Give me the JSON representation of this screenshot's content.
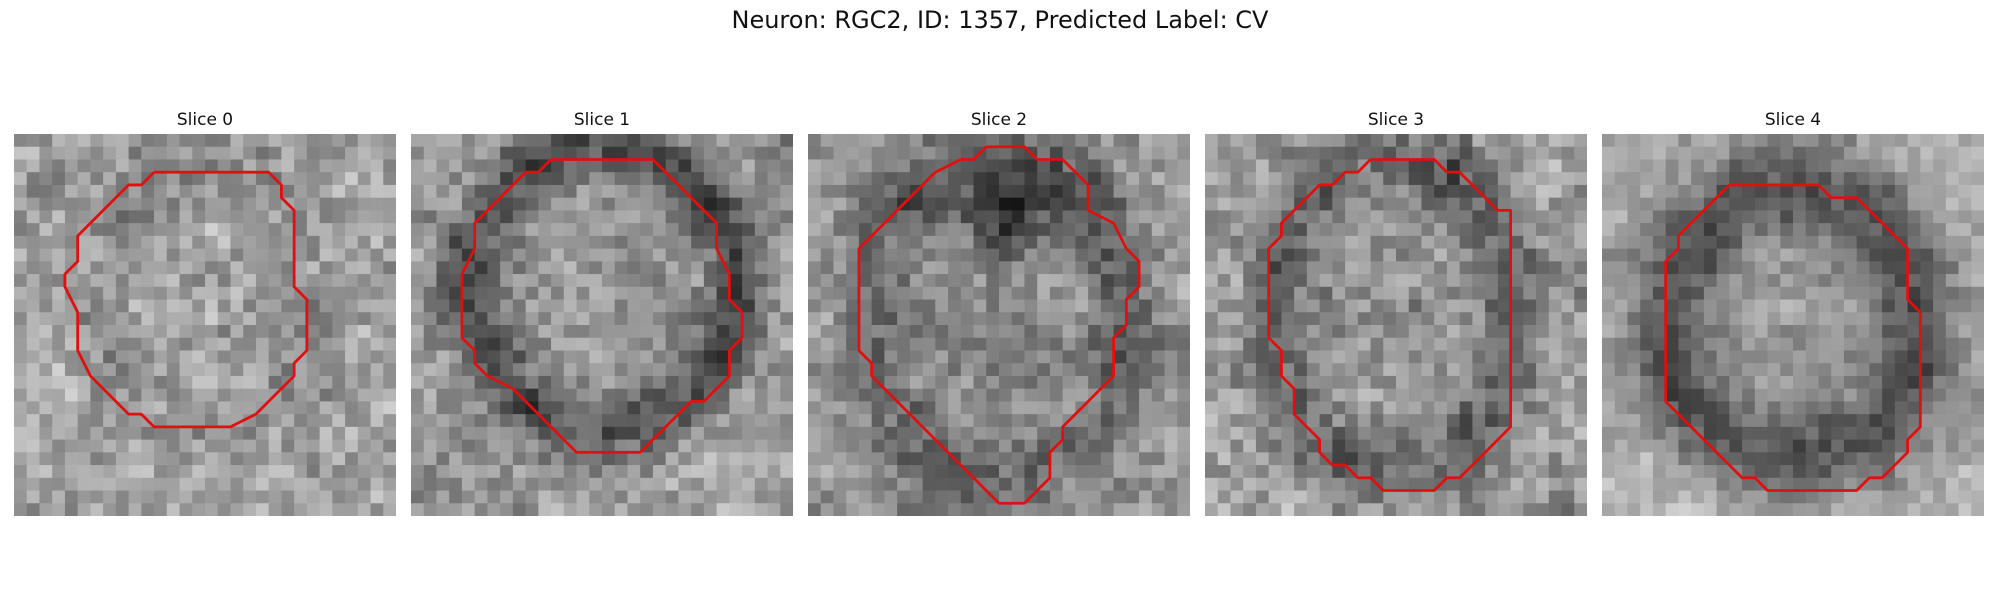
{
  "figure": {
    "title": "Neuron: RGC2, ID: 1357, Predicted Label: CV"
  },
  "style": {
    "contour_color": "#e01010"
  },
  "panels": [
    {
      "title": "Slice 0",
      "pattern": "faint-ring"
    },
    {
      "title": "Slice 1",
      "pattern": "dark-ring"
    },
    {
      "title": "Slice 2",
      "pattern": "dark-top-cross"
    },
    {
      "title": "Slice 3",
      "pattern": "dark-ring-mottled"
    },
    {
      "title": "Slice 4",
      "pattern": "thick-dark-ring"
    }
  ]
}
